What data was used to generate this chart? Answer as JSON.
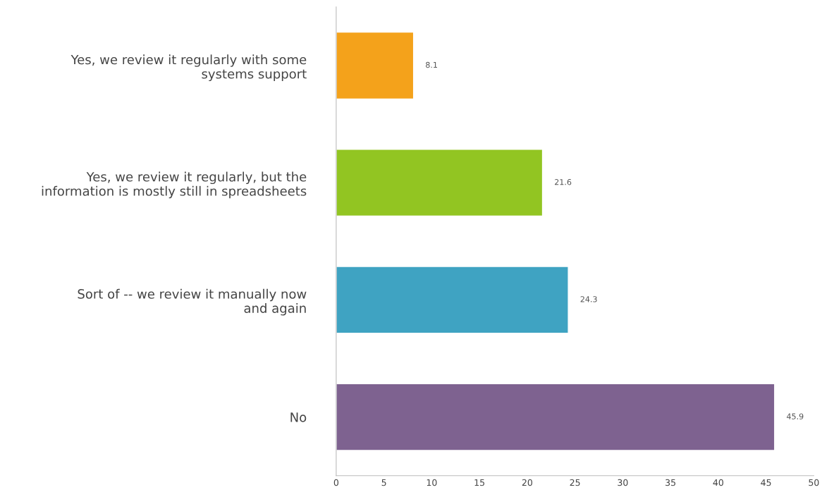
{
  "chart_data": {
    "type": "bar",
    "orientation": "horizontal",
    "categories": [
      "Yes, we review it regularly with some\nsystems support",
      "Yes, we review it regularly, but the\ninformation is mostly still in spreadsheets",
      "Sort of -- we review it manually now\nand again",
      "No"
    ],
    "values": [
      8.1,
      21.6,
      24.3,
      45.9
    ],
    "colors": [
      "#f4a21b",
      "#92c522",
      "#3fa3c2",
      "#7e6290"
    ],
    "xlim": [
      0,
      50
    ],
    "xticks": [
      0,
      5,
      10,
      15,
      20,
      25,
      30,
      35,
      40,
      45,
      50
    ],
    "data_labels": true,
    "grid": false,
    "legend": false
  }
}
